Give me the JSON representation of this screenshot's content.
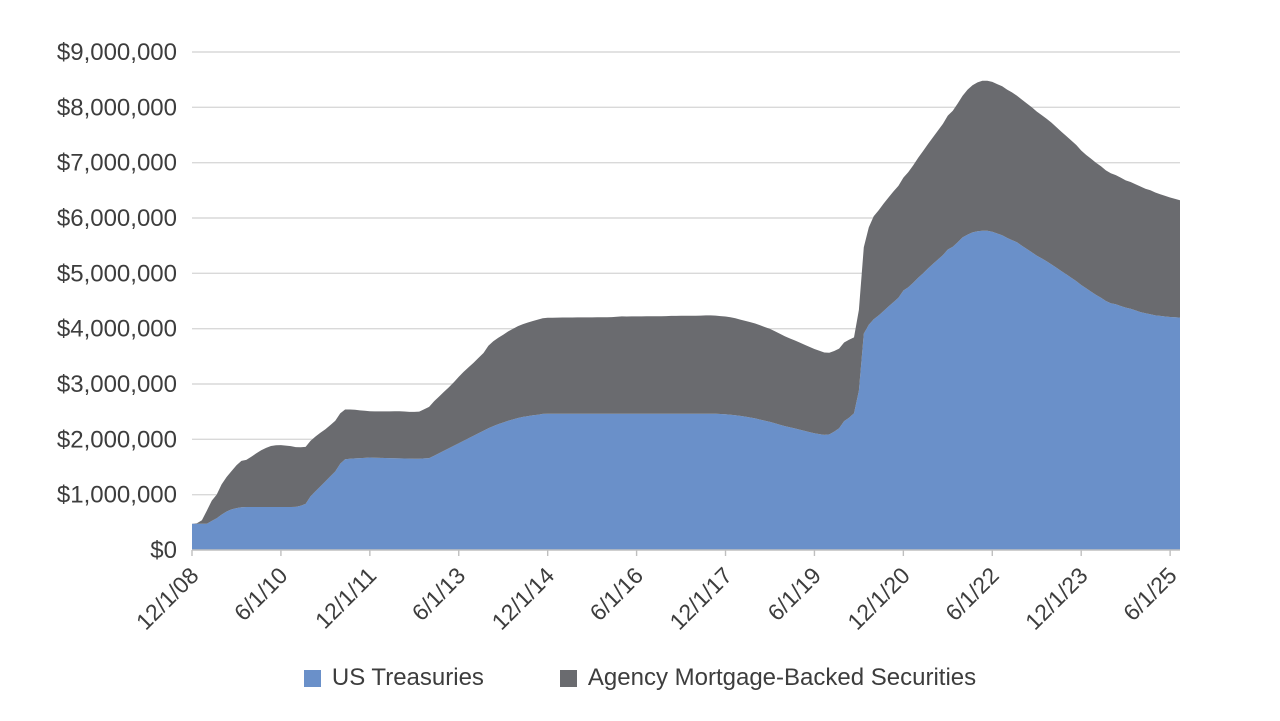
{
  "chart_data": {
    "type": "area",
    "stacked": true,
    "grid": "horizontal",
    "legend_position": "bottom-center",
    "background_color": "#ffffff",
    "gridline_color": "#d9d9d9",
    "axis_line_color": "#bfbfbf",
    "label_color": "#3d3d3d",
    "unit": "USD millions",
    "x_start": "12/1/08",
    "x_end": "8/1/25",
    "x_frequency": "monthly",
    "y_axis": {
      "min": 0,
      "max": 9000000,
      "ticks": [
        {
          "label": "$0",
          "value": 0
        },
        {
          "label": "$1,000,000",
          "value": 1000000
        },
        {
          "label": "$2,000,000",
          "value": 2000000
        },
        {
          "label": "$3,000,000",
          "value": 3000000
        },
        {
          "label": "$4,000,000",
          "value": 4000000
        },
        {
          "label": "$5,000,000",
          "value": 5000000
        },
        {
          "label": "$6,000,000",
          "value": 6000000
        },
        {
          "label": "$7,000,000",
          "value": 7000000
        },
        {
          "label": "$8,000,000",
          "value": 8000000
        },
        {
          "label": "$9,000,000",
          "value": 9000000
        }
      ]
    },
    "x_axis": {
      "ticks": [
        {
          "label": "12/1/08",
          "month_index": 0
        },
        {
          "label": "6/1/10",
          "month_index": 18
        },
        {
          "label": "12/1/11",
          "month_index": 36
        },
        {
          "label": "6/1/13",
          "month_index": 54
        },
        {
          "label": "12/1/14",
          "month_index": 72
        },
        {
          "label": "6/1/16",
          "month_index": 90
        },
        {
          "label": "12/1/17",
          "month_index": 108
        },
        {
          "label": "6/1/19",
          "month_index": 126
        },
        {
          "label": "12/1/20",
          "month_index": 144
        },
        {
          "label": "6/1/22",
          "month_index": 162
        },
        {
          "label": "12/1/23",
          "month_index": 180
        },
        {
          "label": "6/1/25",
          "month_index": 198
        }
      ]
    },
    "series": [
      {
        "name": "US Treasuries",
        "color": "#6a90c9",
        "values": [
          476000,
          475000,
          474000,
          474000,
          526000,
          575000,
          640000,
          695000,
          733000,
          757000,
          773000,
          777000,
          777000,
          777000,
          777000,
          777000,
          777000,
          777000,
          777000,
          777000,
          777000,
          779000,
          798000,
          834000,
          970000,
          1060000,
          1150000,
          1240000,
          1330000,
          1420000,
          1560000,
          1640000,
          1650000,
          1656000,
          1660000,
          1665000,
          1672000,
          1668000,
          1665000,
          1663000,
          1660000,
          1658000,
          1655000,
          1653000,
          1651000,
          1650000,
          1650000,
          1655000,
          1660000,
          1705000,
          1750000,
          1795000,
          1840000,
          1885000,
          1930000,
          1975000,
          2020000,
          2065000,
          2110000,
          2155000,
          2200000,
          2240000,
          2275000,
          2305000,
          2335000,
          2360000,
          2385000,
          2405000,
          2420000,
          2435000,
          2445000,
          2460000,
          2461000,
          2461000,
          2461000,
          2461000,
          2461000,
          2461000,
          2461000,
          2461000,
          2461000,
          2461000,
          2461000,
          2461000,
          2462000,
          2462000,
          2462000,
          2462000,
          2462000,
          2462000,
          2462000,
          2462000,
          2462000,
          2462000,
          2462000,
          2462000,
          2462000,
          2463000,
          2463000,
          2463000,
          2463000,
          2463000,
          2463000,
          2463000,
          2463000,
          2463000,
          2461000,
          2458000,
          2454000,
          2446000,
          2436000,
          2424000,
          2410000,
          2395000,
          2378000,
          2357000,
          2337000,
          2315000,
          2290000,
          2265000,
          2240000,
          2218000,
          2197000,
          2175000,
          2153000,
          2131000,
          2110000,
          2095000,
          2080000,
          2090000,
          2140000,
          2200000,
          2330000,
          2390000,
          2470000,
          2880000,
          3910000,
          4070000,
          4170000,
          4240000,
          4320000,
          4400000,
          4480000,
          4560000,
          4690000,
          4750000,
          4830000,
          4920000,
          5000000,
          5090000,
          5170000,
          5250000,
          5330000,
          5430000,
          5480000,
          5560000,
          5650000,
          5700000,
          5740000,
          5760000,
          5770000,
          5770000,
          5750000,
          5720000,
          5690000,
          5640000,
          5600000,
          5560000,
          5500000,
          5440000,
          5380000,
          5320000,
          5270000,
          5220000,
          5160000,
          5100000,
          5040000,
          4980000,
          4920000,
          4860000,
          4790000,
          4730000,
          4670000,
          4610000,
          4560000,
          4500000,
          4460000,
          4440000,
          4410000,
          4380000,
          4360000,
          4330000,
          4300000,
          4280000,
          4260000,
          4240000,
          4230000,
          4220000,
          4210000,
          4205000,
          4200000
        ]
      },
      {
        "name": "Agency Mortgage-Backed Securities",
        "color": "#6a6b6f",
        "values": [
          0,
          7000,
          65000,
          236000,
          366000,
          427000,
          546000,
          625000,
          693000,
          776000,
          837000,
          852000,
          908000,
          968000,
          1024000,
          1069000,
          1103000,
          1117000,
          1118000,
          1110000,
          1100000,
          1080000,
          1060000,
          1030000,
          1004000,
          992000,
          970000,
          944000,
          927000,
          917000,
          909000,
          900000,
          890000,
          880000,
          862000,
          851000,
          837000,
          837000,
          840000,
          842000,
          845000,
          848000,
          852000,
          850000,
          844000,
          845000,
          852000,
          890000,
          927000,
          983000,
          1023000,
          1062000,
          1103000,
          1146000,
          1201000,
          1247000,
          1283000,
          1318000,
          1361000,
          1406000,
          1490000,
          1532000,
          1560000,
          1586000,
          1615000,
          1639000,
          1662000,
          1677000,
          1692000,
          1703000,
          1718000,
          1729000,
          1737000,
          1738000,
          1739000,
          1740000,
          1741000,
          1741000,
          1742000,
          1742000,
          1743000,
          1743000,
          1744000,
          1744000,
          1744000,
          1747000,
          1752000,
          1760000,
          1758000,
          1759000,
          1759000,
          1760000,
          1762000,
          1763000,
          1764000,
          1764000,
          1765000,
          1767000,
          1768000,
          1770000,
          1771000,
          1772000,
          1772000,
          1774000,
          1776000,
          1777000,
          1775000,
          1770000,
          1765000,
          1760000,
          1752000,
          1740000,
          1731000,
          1723000,
          1715000,
          1703000,
          1691000,
          1680000,
          1662000,
          1643000,
          1623000,
          1607000,
          1591000,
          1575000,
          1557000,
          1540000,
          1522000,
          1506000,
          1490000,
          1475000,
          1457000,
          1440000,
          1420000,
          1408000,
          1372000,
          1460000,
          1560000,
          1760000,
          1860000,
          1900000,
          1940000,
          1970000,
          2000000,
          2020000,
          2040000,
          2080000,
          2120000,
          2170000,
          2210000,
          2250000,
          2290000,
          2330000,
          2370000,
          2420000,
          2460000,
          2510000,
          2560000,
          2620000,
          2660000,
          2690000,
          2710000,
          2710000,
          2710000,
          2700000,
          2690000,
          2680000,
          2670000,
          2650000,
          2640000,
          2630000,
          2620000,
          2605000,
          2590000,
          2575000,
          2560000,
          2540000,
          2520000,
          2500000,
          2480000,
          2460000,
          2430000,
          2410000,
          2400000,
          2390000,
          2375000,
          2360000,
          2350000,
          2335000,
          2320000,
          2300000,
          2290000,
          2280000,
          2270000,
          2250000,
          2240000,
          2220000,
          2200000,
          2180000,
          2160000,
          2140000,
          2120000
        ]
      }
    ]
  },
  "legend": {
    "items": [
      {
        "label": "US Treasuries"
      },
      {
        "label": "Agency Mortgage-Backed Securities"
      }
    ]
  }
}
